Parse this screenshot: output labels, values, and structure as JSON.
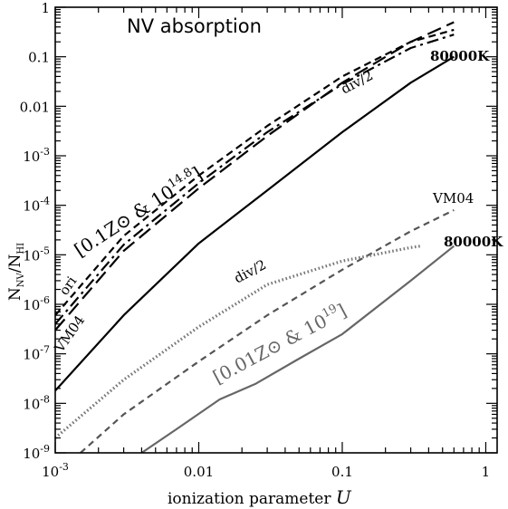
{
  "chart_data": {
    "type": "line",
    "title": "NV absorption",
    "xlabel": "ionization parameter U",
    "ylabel": "N_NV/N_HI",
    "xscale": "log",
    "yscale": "log",
    "xlim": [
      0.001,
      1.2
    ],
    "ylim": [
      1e-09,
      1
    ],
    "x_ticks": [
      {
        "value": 0.001,
        "label": "10^-3"
      },
      {
        "value": 0.01,
        "label": "0.01"
      },
      {
        "value": 0.1,
        "label": "0.1"
      },
      {
        "value": 1,
        "label": "1"
      }
    ],
    "y_ticks": [
      {
        "value": 1e-09,
        "label": "10^-9"
      },
      {
        "value": 1e-08,
        "label": "10^-8"
      },
      {
        "value": 1e-07,
        "label": "10^-7"
      },
      {
        "value": 1e-06,
        "label": "10^-6"
      },
      {
        "value": 1e-05,
        "label": "10^-5"
      },
      {
        "value": 0.0001,
        "label": "10^-4"
      },
      {
        "value": 0.001,
        "label": "10^-3"
      },
      {
        "value": 0.01,
        "label": "0.01"
      },
      {
        "value": 0.1,
        "label": "0.1"
      },
      {
        "value": 1,
        "label": "1"
      }
    ],
    "series": [
      {
        "name": "80000K",
        "group": "0.1Z_sun & 10^14.8",
        "color": "#000000",
        "dash": "solid",
        "x": [
          0.001,
          0.003,
          0.01,
          0.03,
          0.1,
          0.3,
          0.6
        ],
        "y": [
          1.8e-08,
          6e-07,
          1.7e-05,
          0.0002,
          0.003,
          0.03,
          0.1
        ]
      },
      {
        "name": "VM04",
        "group": "0.1Z_sun & 10^14.8",
        "color": "#000000",
        "dash": "long-dash",
        "x": [
          0.001,
          0.003,
          0.01,
          0.03,
          0.1,
          0.3,
          0.6
        ],
        "y": [
          3e-07,
          1.2e-05,
          0.00022,
          0.0025,
          0.03,
          0.2,
          0.5
        ]
      },
      {
        "name": "div/2",
        "group": "0.1Z_sun & 10^14.8",
        "color": "#000000",
        "dash": "dash-dot",
        "x": [
          0.001,
          0.003,
          0.01,
          0.03,
          0.1,
          0.3,
          0.6
        ],
        "y": [
          4e-07,
          1.6e-05,
          0.00028,
          0.003,
          0.028,
          0.15,
          0.28
        ]
      },
      {
        "name": "ori",
        "group": "0.1Z_sun & 10^14.8",
        "color": "#000000",
        "dash": "short-dash",
        "x": [
          0.001,
          0.003,
          0.01,
          0.03,
          0.1,
          0.3,
          0.6
        ],
        "y": [
          6e-07,
          2.4e-05,
          0.0004,
          0.004,
          0.04,
          0.2,
          0.35
        ]
      },
      {
        "name": "80000K",
        "group": "0.01Z_sun & 10^19",
        "color": "#666666",
        "dash": "solid",
        "x": [
          0.004,
          0.007,
          0.014,
          0.025,
          0.05,
          0.1,
          0.3,
          0.6
        ],
        "y": [
          1e-09,
          3e-09,
          1.2e-08,
          2.5e-08,
          8e-08,
          2.5e-07,
          3e-06,
          1.5e-05
        ]
      },
      {
        "name": "VM04",
        "group": "0.01Z_sun & 10^19",
        "color": "#555555",
        "dash": "dash",
        "x": [
          0.0015,
          0.003,
          0.01,
          0.03,
          0.1,
          0.3,
          0.6
        ],
        "y": [
          1e-09,
          6e-09,
          7e-08,
          6e-07,
          5e-06,
          3e-05,
          8e-05
        ]
      },
      {
        "name": "div/2",
        "group": "0.01Z_sun & 10^19",
        "color": "#777777",
        "dash": "dotted",
        "x": [
          0.001,
          0.003,
          0.01,
          0.03,
          0.1,
          0.3,
          0.35
        ],
        "y": [
          2e-09,
          3e-08,
          3.5e-07,
          2.5e-06,
          7.5e-06,
          1.4e-05,
          1.5e-05
        ]
      }
    ],
    "annotations": [
      {
        "text": "80000K",
        "color": "#000000"
      },
      {
        "text": "div/2",
        "color": "#000000"
      },
      {
        "text": "ori",
        "color": "#000000"
      },
      {
        "text": "VM04",
        "color": "#000000"
      },
      {
        "text": "[0.1Z⊙ & 10",
        "sup": "14.8",
        "close": "]",
        "color": "#000000"
      },
      {
        "text": "VM04",
        "color": "#555555"
      },
      {
        "text": "80000K",
        "color": "#666666"
      },
      {
        "text": "div/2",
        "color": "#777777"
      },
      {
        "text": "[0.01Z⊙ & 10",
        "sup": "19",
        "close": "]",
        "color": "#666666"
      }
    ]
  }
}
